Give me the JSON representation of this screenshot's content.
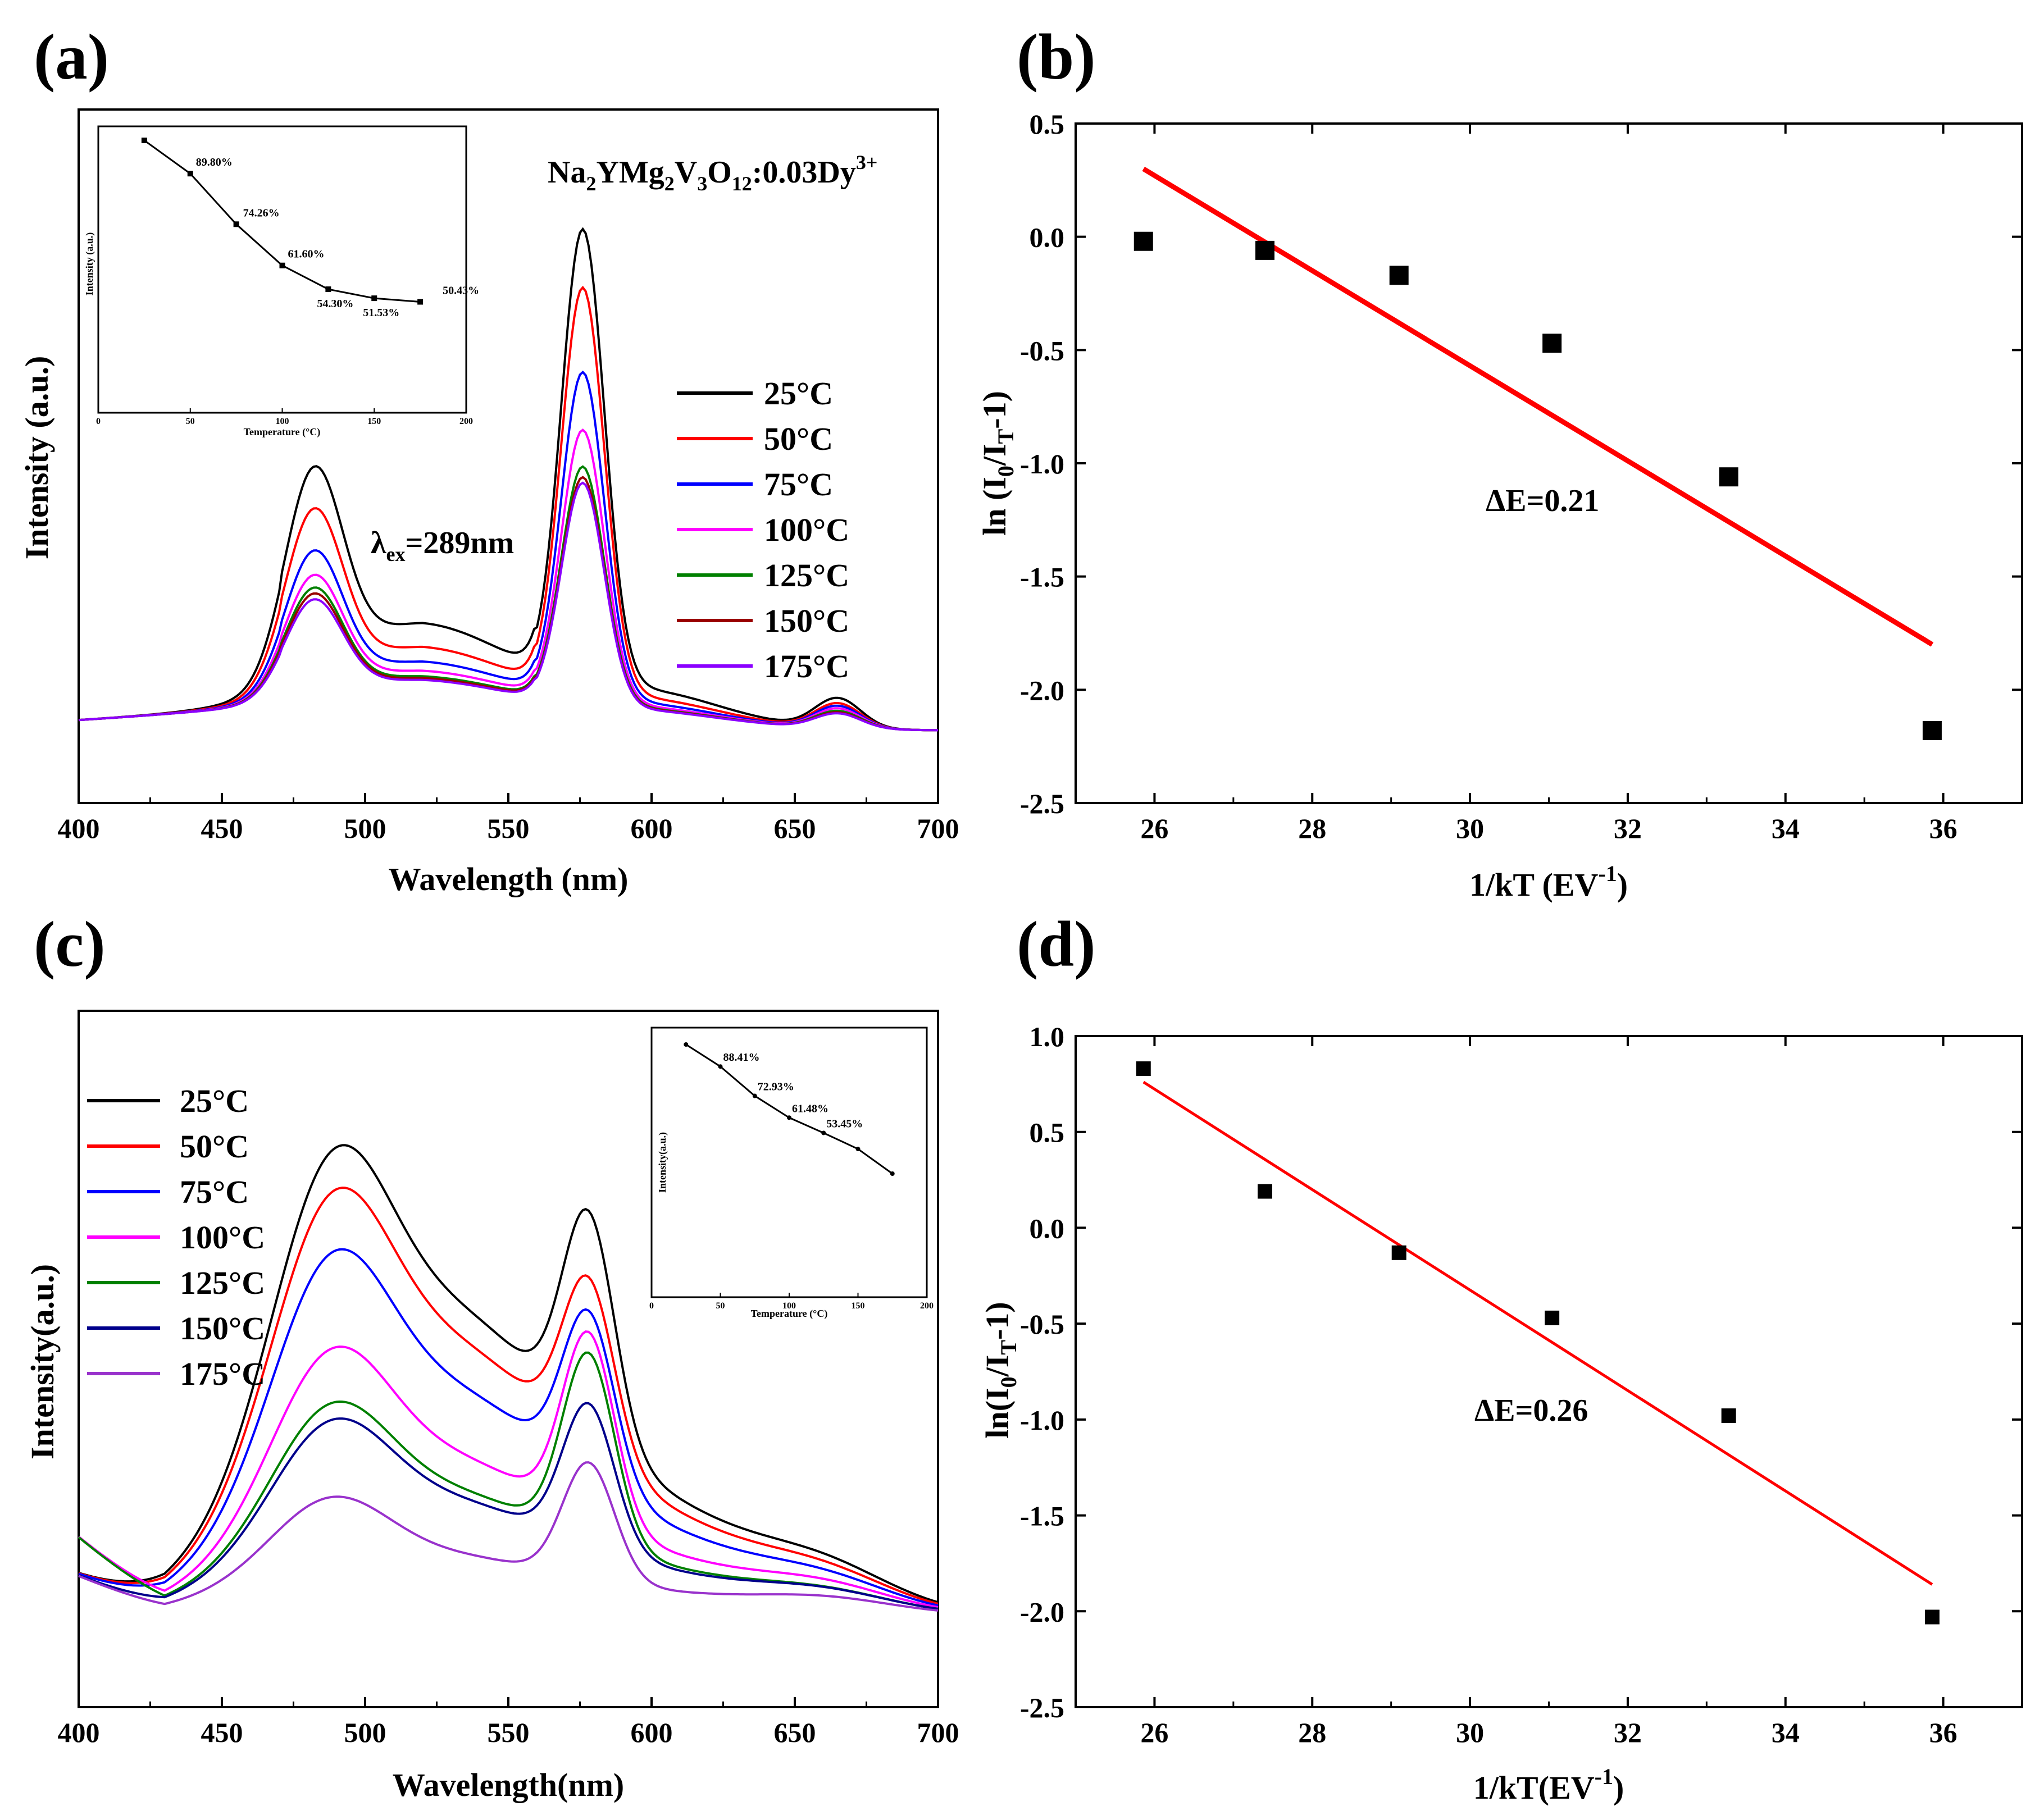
{
  "chart_data": [
    {
      "id": "a",
      "panel_label": "(a)",
      "type": "line",
      "xlabel": "Wavelength (nm)",
      "ylabel": "Intensity (a.u.)",
      "xlim": [
        400,
        700
      ],
      "ylim": [
        0,
        1
      ],
      "xticks": [
        "400",
        "450",
        "500",
        "550",
        "600",
        "650",
        "700"
      ],
      "sample_label": "Na2YMg2V3O12:0.03Dy3+",
      "sample_parts": {
        "a": "Na",
        "b": "2",
        "c": "YMg",
        "d": "2",
        "e": "V",
        "f": "3",
        "g": "O",
        "h": "12",
        "i": ":0.03Dy",
        "j": "3+"
      },
      "excitation": {
        "sym": "λ",
        "sub": "ex",
        "value": "=289nm"
      },
      "excitation_label": "λex=289nm",
      "series": [
        {
          "name": "25°C",
          "color": "#000000",
          "scale": 1.0,
          "base": 0.46,
          "p480": 0.4,
          "p577": 0.92,
          "p665": 0.06
        },
        {
          "name": "50°C",
          "color": "#ff0000",
          "scale": 0.898,
          "base": 0.33,
          "p480": 0.34,
          "p577": 0.82,
          "p665": 0.05
        },
        {
          "name": "75°C",
          "color": "#0000ff",
          "scale": 0.7426,
          "base": 0.25,
          "p480": 0.27,
          "p577": 0.66,
          "p665": 0.045
        },
        {
          "name": "100°C",
          "color": "#ff00ff",
          "scale": 0.616,
          "base": 0.2,
          "p480": 0.23,
          "p577": 0.55,
          "p665": 0.04
        },
        {
          "name": "125°C",
          "color": "#008000",
          "scale": 0.543,
          "base": 0.17,
          "p480": 0.21,
          "p577": 0.48,
          "p665": 0.035
        },
        {
          "name": "150°C",
          "color": "#990000",
          "scale": 0.5153,
          "base": 0.16,
          "p480": 0.2,
          "p577": 0.46,
          "p665": 0.032
        },
        {
          "name": "175°C",
          "color": "#8b00ff",
          "scale": 0.5043,
          "base": 0.15,
          "p480": 0.19,
          "p577": 0.45,
          "p665": 0.03
        }
      ],
      "inset": {
        "xlabel": "Temperature (°C)",
        "ylabel": "Intensity (a.u.)",
        "xlim": [
          0,
          200
        ],
        "xticks": [
          "0",
          "50",
          "100",
          "150",
          "200"
        ],
        "x": [
          25,
          50,
          75,
          100,
          125,
          150,
          175
        ],
        "y": [
          100,
          89.8,
          74.26,
          61.6,
          54.3,
          51.53,
          50.43
        ],
        "labels": [
          "",
          "89.80%",
          "74.26%",
          "61.60%",
          "54.30%",
          "51.53%",
          "50.43%"
        ]
      }
    },
    {
      "id": "b",
      "panel_label": "(b)",
      "type": "scatter",
      "xlabel": "1/kT (EV-1)",
      "xlabel_parts": {
        "main": "1/kT (EV",
        "sup": "-1",
        "close": ")"
      },
      "ylabel": "ln (I0/IT-1)",
      "ylabel_parts": {
        "a": "ln (I",
        "b": "0",
        "c": "/I",
        "d": "T",
        "e": "-1)"
      },
      "xlim": [
        25,
        37
      ],
      "ylim": [
        -2.5,
        0.5
      ],
      "xticks": [
        "26",
        "28",
        "30",
        "32",
        "34",
        "36"
      ],
      "yticks": [
        "0.5",
        "0.0",
        "-0.5",
        "-1.0",
        "-1.5",
        "-2.0",
        "-2.5"
      ],
      "x": [
        25.86,
        27.4,
        29.1,
        31.04,
        33.28,
        35.86
      ],
      "y": [
        -0.02,
        -0.06,
        -0.17,
        -0.47,
        -1.06,
        -2.18
      ],
      "fit": {
        "x": [
          25.86,
          35.86
        ],
        "y": [
          0.3,
          -1.8
        ],
        "color": "#ff0000"
      },
      "annotation": "ΔE=0.21"
    },
    {
      "id": "c",
      "panel_label": "(c)",
      "type": "line",
      "xlabel": "Wavelength(nm)",
      "ylabel": "Intensity(a.u.)",
      "xlim": [
        400,
        700
      ],
      "ylim": [
        0,
        1
      ],
      "xticks": [
        "400",
        "450",
        "500",
        "550",
        "600",
        "650",
        "700"
      ],
      "series": [
        {
          "name": "25°C",
          "color": "#000000",
          "b1": 0.5,
          "b2": 0.72,
          "p578": 0.43,
          "p670": 0.08
        },
        {
          "name": "50°C",
          "color": "#ff0000",
          "b1": 0.46,
          "b2": 0.64,
          "p578": 0.34,
          "p670": 0.07
        },
        {
          "name": "75°C",
          "color": "#0000ff",
          "b1": 0.4,
          "b2": 0.53,
          "p578": 0.33,
          "p670": 0.06
        },
        {
          "name": "100°C",
          "color": "#ff00ff",
          "b1": 0.3,
          "b2": 0.37,
          "p578": 0.37,
          "p670": 0.05
        },
        {
          "name": "125°C",
          "color": "#008000",
          "b1": 0.24,
          "b2": 0.29,
          "p578": 0.37,
          "p670": 0.04
        },
        {
          "name": "150°C",
          "color": "#00008b",
          "b1": 0.22,
          "b2": 0.27,
          "p578": 0.28,
          "p670": 0.04
        },
        {
          "name": "175°C",
          "color": "#9932cc",
          "b1": 0.14,
          "b2": 0.14,
          "p578": 0.23,
          "p670": 0.03
        }
      ],
      "inset": {
        "xlabel": "Temperature (°C)",
        "ylabel": "Intensity(a.u.)",
        "xlim": [
          0,
          200
        ],
        "xticks": [
          "0",
          "50",
          "100",
          "150",
          "200"
        ],
        "x": [
          25,
          50,
          75,
          100,
          125,
          150,
          175
        ],
        "y": [
          100,
          88.41,
          72.93,
          61.48,
          53.45,
          45.0,
          32.0
        ],
        "labels": [
          "",
          "88.41%",
          "72.93%",
          "61.48%",
          "53.45%",
          "",
          ""
        ]
      }
    },
    {
      "id": "d",
      "panel_label": "(d)",
      "type": "scatter",
      "xlabel": "1/kT(EV-1)",
      "xlabel_parts": {
        "main": "1/kT(EV",
        "sup": "-1",
        "close": ")"
      },
      "ylabel": "ln(I0/IT-1)",
      "ylabel_parts": {
        "a": "ln(I",
        "b": "0",
        "c": "/I",
        "d": "T",
        "e": "-1)"
      },
      "xlim": [
        25,
        37
      ],
      "ylim": [
        -2.5,
        1.0
      ],
      "xticks": [
        "26",
        "28",
        "30",
        "32",
        "34",
        "36"
      ],
      "yticks": [
        "1.0",
        "0.5",
        "0.0",
        "-0.5",
        "-1.0",
        "-1.5",
        "-2.0",
        "-2.5"
      ],
      "x": [
        25.86,
        27.4,
        29.1,
        31.04,
        33.28,
        35.86
      ],
      "y": [
        0.83,
        0.19,
        -0.13,
        -0.47,
        -0.98,
        -2.03
      ],
      "fit": {
        "x": [
          25.86,
          35.86
        ],
        "y": [
          0.76,
          -1.86
        ],
        "color": "#ff0000"
      },
      "annotation": "ΔE=0.26"
    }
  ]
}
